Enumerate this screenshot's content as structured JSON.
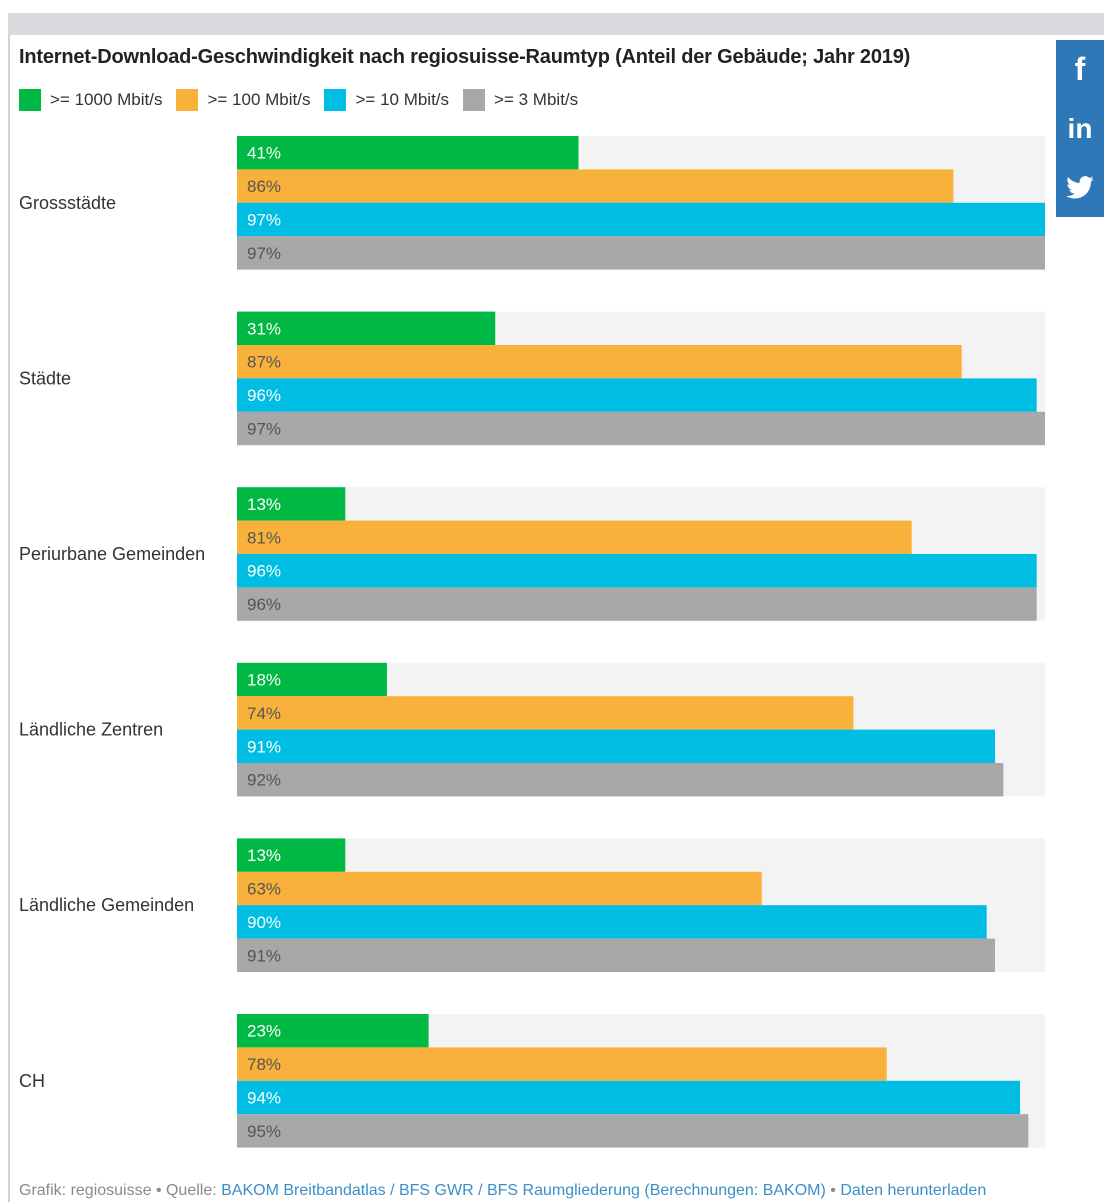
{
  "title": "Internet-Download-Geschwindigkeit nach regiosuisse-Raumtyp (Anteil der Gebäude; Jahr 2019)",
  "social": {
    "facebook_label": "f",
    "linkedin_label": "in",
    "twitter_icon": "twitter-bird-icon"
  },
  "colors": {
    "green": "#00b944",
    "orange": "#f8b13b",
    "blue": "#00bde3",
    "gray": "#a8a8a8",
    "track": "#f3f3f3",
    "social": "#2f78b7",
    "link": "#3b8fc8"
  },
  "chart_data": {
    "type": "bar",
    "orientation": "horizontal",
    "title": "Internet-Download-Geschwindigkeit nach regiosuisse-Raumtyp (Anteil der Gebäude; Jahr 2019)",
    "categories": [
      "Grossstädte",
      "Städte",
      "Periurbane Gemeinden",
      "Ländliche Zentren",
      "Ländliche Gemeinden",
      "CH"
    ],
    "series": [
      {
        "name": ">= 1000 Mbit/s",
        "color": "#00b944",
        "label_color": "#ffffff",
        "values": [
          41,
          31,
          13,
          18,
          13,
          23
        ]
      },
      {
        "name": ">= 100 Mbit/s",
        "color": "#f8b13b",
        "label_color": "#555555",
        "values": [
          86,
          87,
          81,
          74,
          63,
          78
        ]
      },
      {
        "name": ">= 10 Mbit/s",
        "color": "#00bde3",
        "label_color": "#ffffff",
        "values": [
          97,
          96,
          96,
          91,
          90,
          94
        ]
      },
      {
        "name": ">= 3 Mbit/s",
        "color": "#a8a8a8",
        "label_color": "#555555",
        "values": [
          97,
          97,
          96,
          92,
          91,
          95
        ]
      }
    ],
    "value_suffix": "%",
    "xlim": [
      0,
      97
    ],
    "grid": false,
    "legend_position": "top-left"
  },
  "footer": {
    "prefix": "Grafik: regiosuisse • Quelle: ",
    "source_link": "BAKOM Breitbandatlas / BFS GWR / BFS Raumgliederung (Berechnungen: BAKOM)",
    "separator": " • ",
    "download_link": "Daten herunterladen"
  }
}
